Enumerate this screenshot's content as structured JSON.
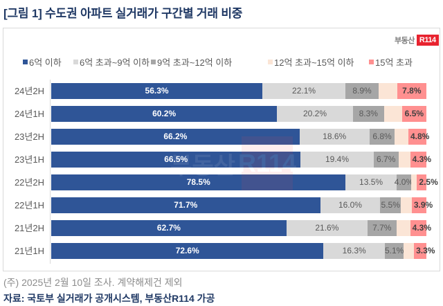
{
  "header": {
    "title": "[그림 1] 수도권 아파트 실거래가 구간별 거래 비중"
  },
  "logo": {
    "text": "부동산",
    "badge": "R114"
  },
  "watermark": {
    "text": "부동산",
    "badge": "R114"
  },
  "legend": [
    {
      "label": "6억 이하",
      "color": "#2F5597"
    },
    {
      "label": "6억 초과~9억 이하",
      "color": "#D9D9D9"
    },
    {
      "label": "9억 초과~12억 이하",
      "color": "#A6A6A6"
    },
    {
      "label": "12억 초과~15억 이하",
      "color": "#FBE5D6"
    },
    {
      "label": "15억 초과",
      "color": "#FF9090"
    }
  ],
  "footer": {
    "note": "(주) 2025년 2월 10일 조사. 계약해제건 제외",
    "source": "자료: 국토부 실거래가 공개시스템, 부동산R114 가공"
  },
  "chart_data": {
    "type": "bar",
    "orientation": "horizontal",
    "stacked": true,
    "percent_stacked": true,
    "title": "[그림 1] 수도권 아파트 실거래가 구간별 거래 비중",
    "xlabel": "",
    "ylabel": "",
    "xlim": [
      0,
      100
    ],
    "grid": false,
    "legend_position": "top",
    "categories": [
      "24년2H",
      "24년1H",
      "23년2H",
      "23년1H",
      "22년2H",
      "22년1H",
      "21년2H",
      "21년1H"
    ],
    "series": [
      {
        "name": "6억 이하",
        "color": "#2F5597",
        "labels_shown": true,
        "values": [
          56.3,
          60.2,
          66.2,
          66.5,
          78.5,
          71.7,
          62.7,
          72.6
        ]
      },
      {
        "name": "6억 초과~9억 이하",
        "color": "#D9D9D9",
        "labels_shown": true,
        "values": [
          22.1,
          20.2,
          18.6,
          19.4,
          13.5,
          16.0,
          21.6,
          16.3
        ]
      },
      {
        "name": "9억 초과~12억 이하",
        "color": "#A6A6A6",
        "labels_shown": true,
        "values": [
          8.9,
          8.3,
          6.8,
          6.7,
          4.0,
          5.5,
          7.7,
          5.1
        ]
      },
      {
        "name": "12억 초과~15억 이하",
        "color": "#FBE5D6",
        "labels_shown": false,
        "values": [
          4.9,
          4.8,
          3.6,
          3.1,
          1.5,
          2.9,
          3.7,
          2.7
        ]
      },
      {
        "name": "15억 초과",
        "color": "#FF9090",
        "labels_shown": true,
        "values": [
          7.8,
          6.5,
          4.8,
          4.3,
          2.5,
          3.9,
          4.3,
          3.3
        ]
      }
    ]
  }
}
